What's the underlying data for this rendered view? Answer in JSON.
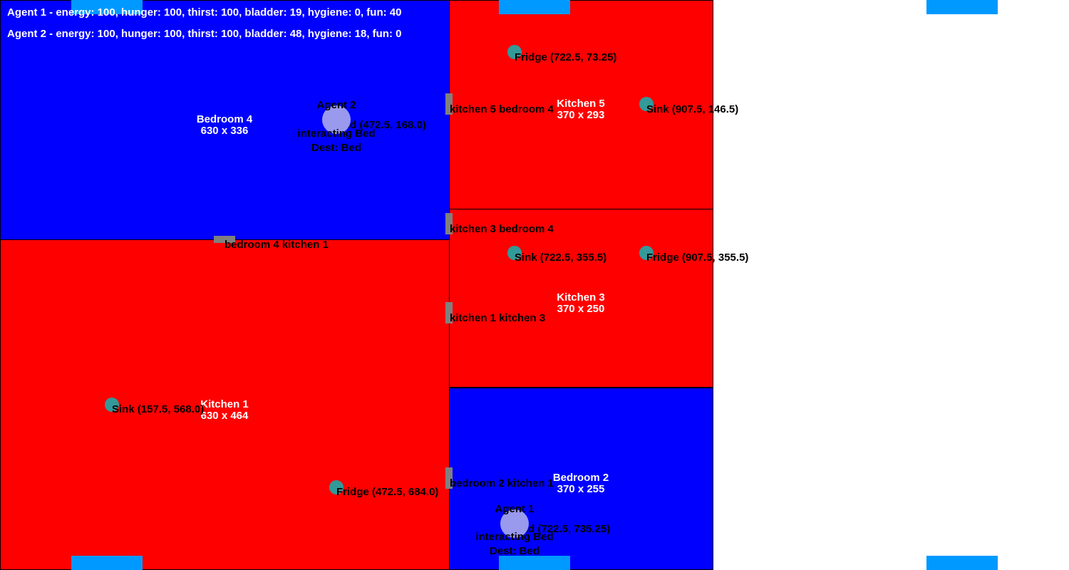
{
  "status": {
    "agent1": "Agent 1 - energy: 100, hunger: 100, thirst: 100, bladder: 19, hygiene: 0, fun: 40",
    "agent2": "Agent 2 - energy: 100, hunger: 100, thirst: 100, bladder: 48, hygiene: 18, fun: 0"
  },
  "colors": {
    "bedroom": "#0000ff",
    "kitchen": "#ff0000",
    "window": "#0099ff",
    "door": "#808080",
    "object": "#339999",
    "agent": "#9999ee"
  },
  "rooms": {
    "bedroom4": {
      "name": "Bedroom 4",
      "size": "630 x 336"
    },
    "kitchen1": {
      "name": "Kitchen 1",
      "size": "630 x 464"
    },
    "kitchen5": {
      "name": "Kitchen 5",
      "size": "370 x 293"
    },
    "kitchen3": {
      "name": "Kitchen 3",
      "size": "370 x 250"
    },
    "bedroom2": {
      "name": "Bedroom 2",
      "size": "370 x 255"
    }
  },
  "doors": {
    "k5_b4": "kitchen 5 bedroom 4",
    "k3_b4": "kitchen 3 bedroom 4",
    "b4_k1": "bedroom 4 kitchen 1",
    "k1_k3": "kitchen 1 kitchen 3",
    "b2_k1": "bedroom 2 kitchen 1"
  },
  "objects": {
    "fridge_k5": "Fridge (722.5, 73.25)",
    "sink_k5": "Sink (907.5, 146.5)",
    "bed_b4": "Bed (472.5, 168.0)",
    "sink_k3": "Sink (722.5, 355.5)",
    "fridge_k3": "Fridge (907.5, 355.5)",
    "sink_k1": "Sink (157.5, 568.0)",
    "fridge_k1": "Fridge (472.5, 684.0)",
    "bed_b2": "Bed (722.5, 735.25)"
  },
  "agents": {
    "agent1": {
      "name": "Agent 1",
      "state": "interacting Bed",
      "dest": "Dest: Bed"
    },
    "agent2": {
      "name": "Agent 2",
      "state": "interacting Bed",
      "dest": "Dest: Bed"
    }
  }
}
